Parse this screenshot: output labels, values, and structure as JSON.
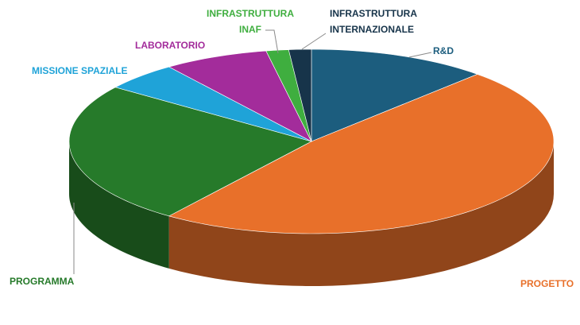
{
  "chart_data": {
    "type": "pie",
    "categories": [
      "R&D",
      "PROGETTO",
      "PROGRAMMA",
      "MISSIONE SPAZIALE",
      "LABORATORIO",
      "INFRASTRUTTURA INAF",
      "INFRASTRUTTURA INTERNAZIONALE"
    ],
    "values": [
      12,
      48,
      25,
      5,
      7,
      1.5,
      1.5
    ],
    "colors": [
      "#1c5d7e",
      "#e8702a",
      "#267a2a",
      "#1fa3d8",
      "#a32c9b",
      "#3fae3f",
      "#17344a"
    ]
  }
}
